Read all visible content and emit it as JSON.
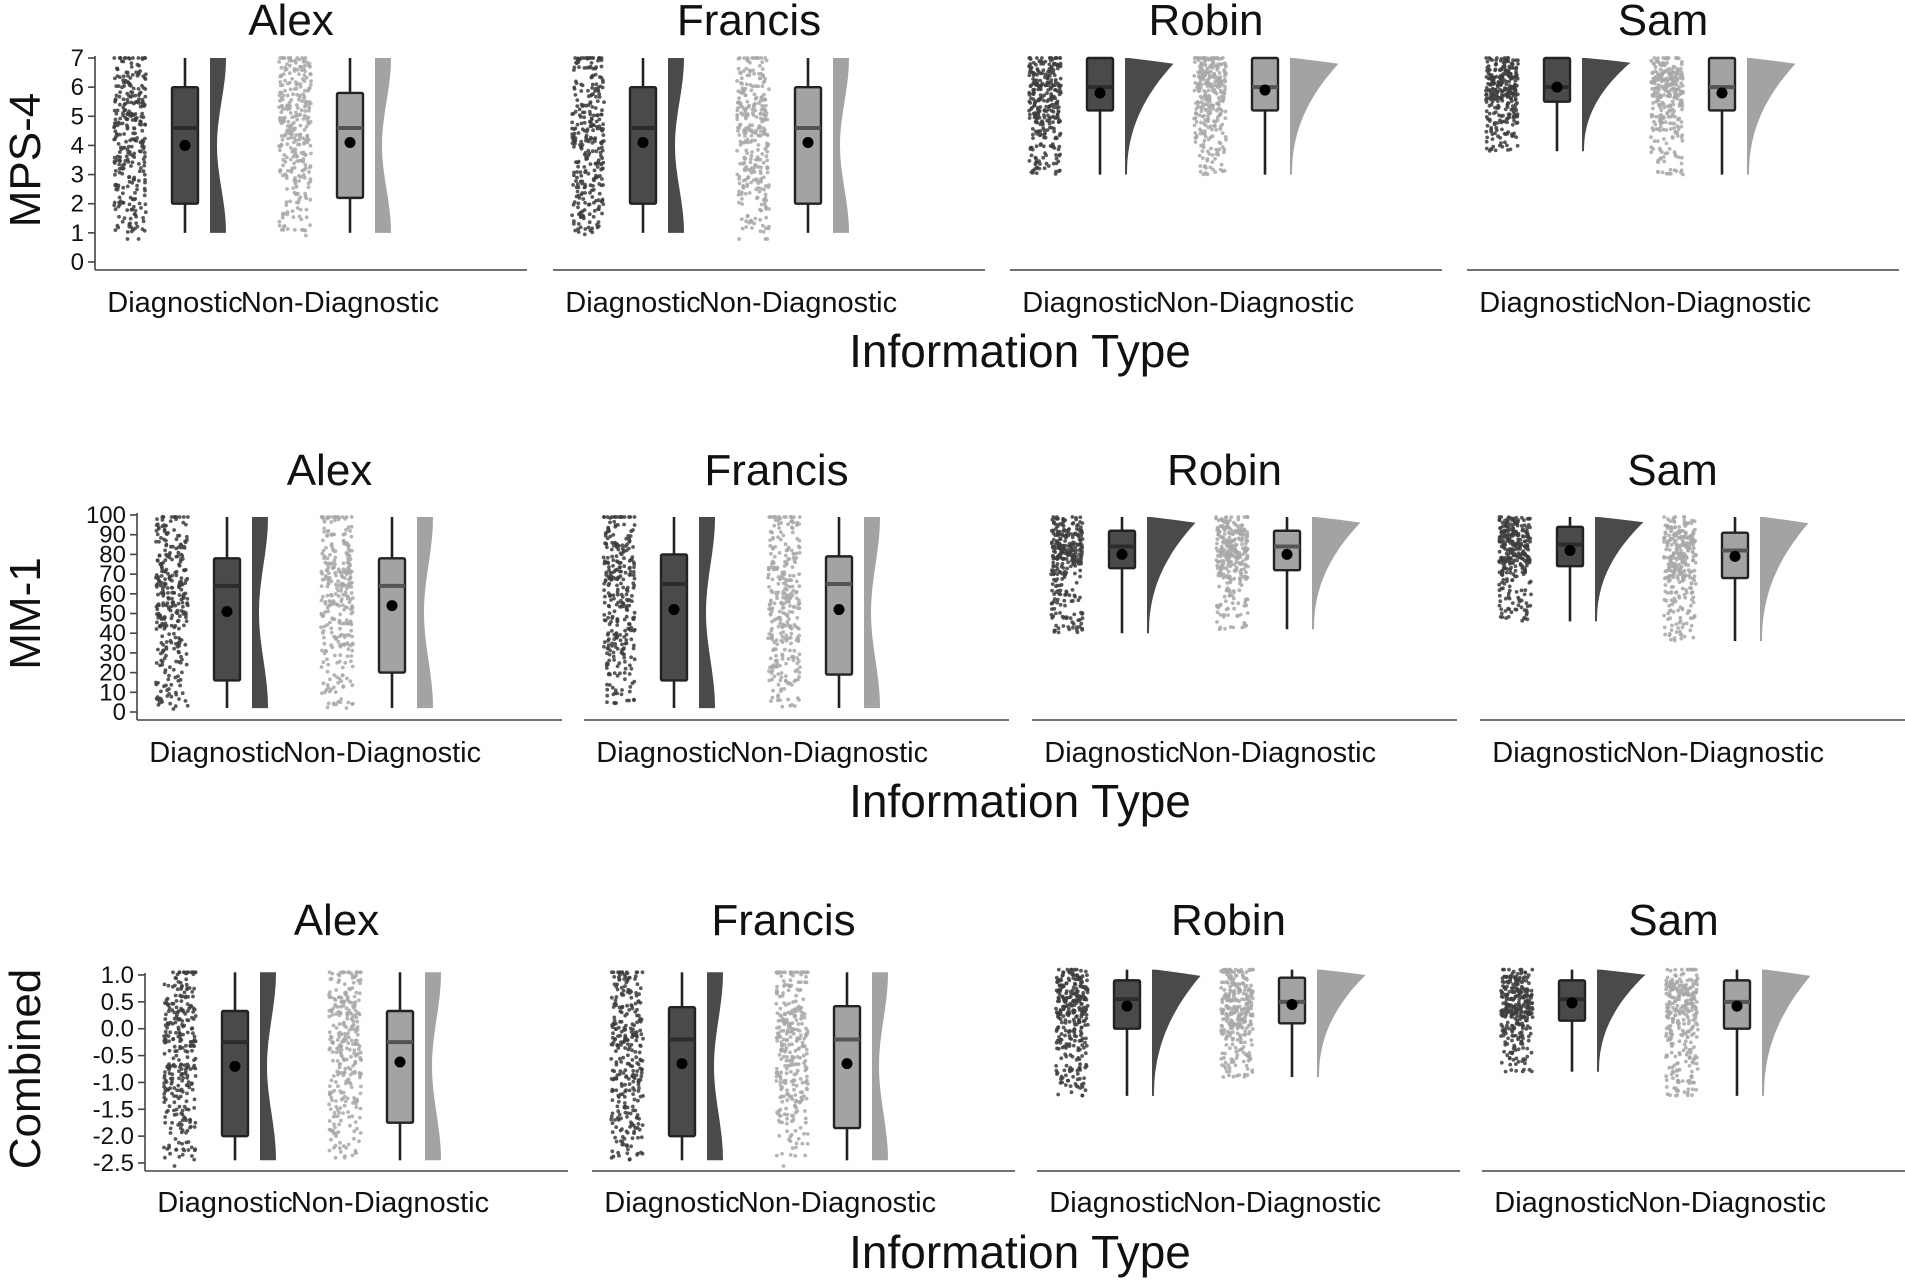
{
  "chart_data": [
    {
      "type": "raincloud",
      "ylabel": "MPS-4",
      "xlabel": "Information Type",
      "ylim": [
        0,
        7
      ],
      "yticks": [
        "0",
        "1",
        "2",
        "3",
        "4",
        "5",
        "6",
        "7"
      ],
      "categories": [
        "Diagnostic",
        "Non-Diagnostic"
      ],
      "panels": [
        {
          "title": "Alex",
          "groups": [
            {
              "category": "Diagnostic",
              "min": 1,
              "q1": 2,
              "median": 4.6,
              "q3": 6,
              "max": 7,
              "mean": 4.0
            },
            {
              "category": "Non-Diagnostic",
              "min": 1,
              "q1": 2.2,
              "median": 4.6,
              "q3": 5.8,
              "max": 7,
              "mean": 4.1
            }
          ]
        },
        {
          "title": "Francis",
          "groups": [
            {
              "category": "Diagnostic",
              "min": 1,
              "q1": 2,
              "median": 4.6,
              "q3": 6,
              "max": 7,
              "mean": 4.1
            },
            {
              "category": "Non-Diagnostic",
              "min": 1,
              "q1": 2,
              "median": 4.6,
              "q3": 6,
              "max": 7,
              "mean": 4.1
            }
          ]
        },
        {
          "title": "Robin",
          "groups": [
            {
              "category": "Diagnostic",
              "min": 3,
              "q1": 5.2,
              "median": 6,
              "q3": 7,
              "max": 7,
              "mean": 5.8
            },
            {
              "category": "Non-Diagnostic",
              "min": 3,
              "q1": 5.2,
              "median": 6,
              "q3": 7,
              "max": 7,
              "mean": 5.9
            }
          ]
        },
        {
          "title": "Sam",
          "groups": [
            {
              "category": "Diagnostic",
              "min": 3.8,
              "q1": 5.5,
              "median": 6,
              "q3": 7,
              "max": 7,
              "mean": 6.0
            },
            {
              "category": "Non-Diagnostic",
              "min": 3,
              "q1": 5.2,
              "median": 6,
              "q3": 7,
              "max": 7,
              "mean": 5.8
            }
          ]
        }
      ]
    },
    {
      "type": "raincloud",
      "ylabel": "MM-1",
      "xlabel": "Information Type",
      "ylim": [
        0,
        100
      ],
      "yticks": [
        "0",
        "10",
        "20",
        "30",
        "40",
        "50",
        "60",
        "70",
        "80",
        "90",
        "100"
      ],
      "categories": [
        "Diagnostic",
        "Non-Diagnostic"
      ],
      "panels": [
        {
          "title": "Alex",
          "groups": [
            {
              "category": "Diagnostic",
              "min": 2,
              "q1": 16,
              "median": 64,
              "q3": 78,
              "max": 99,
              "mean": 51
            },
            {
              "category": "Non-Diagnostic",
              "min": 2,
              "q1": 20,
              "median": 64,
              "q3": 78,
              "max": 99,
              "mean": 54
            }
          ]
        },
        {
          "title": "Francis",
          "groups": [
            {
              "category": "Diagnostic",
              "min": 2,
              "q1": 16,
              "median": 65,
              "q3": 80,
              "max": 99,
              "mean": 52
            },
            {
              "category": "Non-Diagnostic",
              "min": 2,
              "q1": 19,
              "median": 65,
              "q3": 79,
              "max": 99,
              "mean": 52
            }
          ]
        },
        {
          "title": "Robin",
          "groups": [
            {
              "category": "Diagnostic",
              "min": 40,
              "q1": 73,
              "median": 84,
              "q3": 92,
              "max": 99,
              "mean": 80
            },
            {
              "category": "Non-Diagnostic",
              "min": 42,
              "q1": 72,
              "median": 84,
              "q3": 92,
              "max": 99,
              "mean": 80
            }
          ]
        },
        {
          "title": "Sam",
          "groups": [
            {
              "category": "Diagnostic",
              "min": 46,
              "q1": 74,
              "median": 85,
              "q3": 94,
              "max": 99,
              "mean": 82
            },
            {
              "category": "Non-Diagnostic",
              "min": 36,
              "q1": 68,
              "median": 82,
              "q3": 91,
              "max": 99,
              "mean": 79
            }
          ]
        }
      ]
    },
    {
      "type": "raincloud",
      "ylabel": "Combined",
      "xlabel": "Information Type",
      "ylim": [
        -2.5,
        1.0
      ],
      "yticks": [
        "-2.5",
        "-2.0",
        "-1.5",
        "-1.0",
        "-0.5",
        "0.0",
        "0.5",
        "1.0"
      ],
      "categories": [
        "Diagnostic",
        "Non-Diagnostic"
      ],
      "panels": [
        {
          "title": "Alex",
          "groups": [
            {
              "category": "Diagnostic",
              "min": -2.45,
              "q1": -2.0,
              "median": -0.25,
              "q3": 0.33,
              "max": 1.05,
              "mean": -0.7
            },
            {
              "category": "Non-Diagnostic",
              "min": -2.45,
              "q1": -1.75,
              "median": -0.25,
              "q3": 0.33,
              "max": 1.05,
              "mean": -0.62
            }
          ]
        },
        {
          "title": "Francis",
          "groups": [
            {
              "category": "Diagnostic",
              "min": -2.45,
              "q1": -2.0,
              "median": -0.2,
              "q3": 0.4,
              "max": 1.05,
              "mean": -0.65
            },
            {
              "category": "Non-Diagnostic",
              "min": -2.45,
              "q1": -1.85,
              "median": -0.2,
              "q3": 0.42,
              "max": 1.05,
              "mean": -0.65
            }
          ]
        },
        {
          "title": "Robin",
          "groups": [
            {
              "category": "Diagnostic",
              "min": -1.25,
              "q1": 0.0,
              "median": 0.55,
              "q3": 0.9,
              "max": 1.1,
              "mean": 0.42
            },
            {
              "category": "Non-Diagnostic",
              "min": -0.9,
              "q1": 0.1,
              "median": 0.5,
              "q3": 0.95,
              "max": 1.1,
              "mean": 0.45
            }
          ]
        },
        {
          "title": "Sam",
          "groups": [
            {
              "category": "Diagnostic",
              "min": -0.8,
              "q1": 0.15,
              "median": 0.55,
              "q3": 0.9,
              "max": 1.1,
              "mean": 0.48
            },
            {
              "category": "Non-Diagnostic",
              "min": -1.25,
              "q1": 0.0,
              "median": 0.5,
              "q3": 0.9,
              "max": 1.1,
              "mean": 0.42
            }
          ]
        }
      ]
    }
  ],
  "colors": {
    "diagnostic": "#4a4a4a",
    "non_diagnostic": "#a3a3a3",
    "points_diagnostic": "#3d3d3d",
    "points_non_diagnostic": "#a8a8a8"
  }
}
